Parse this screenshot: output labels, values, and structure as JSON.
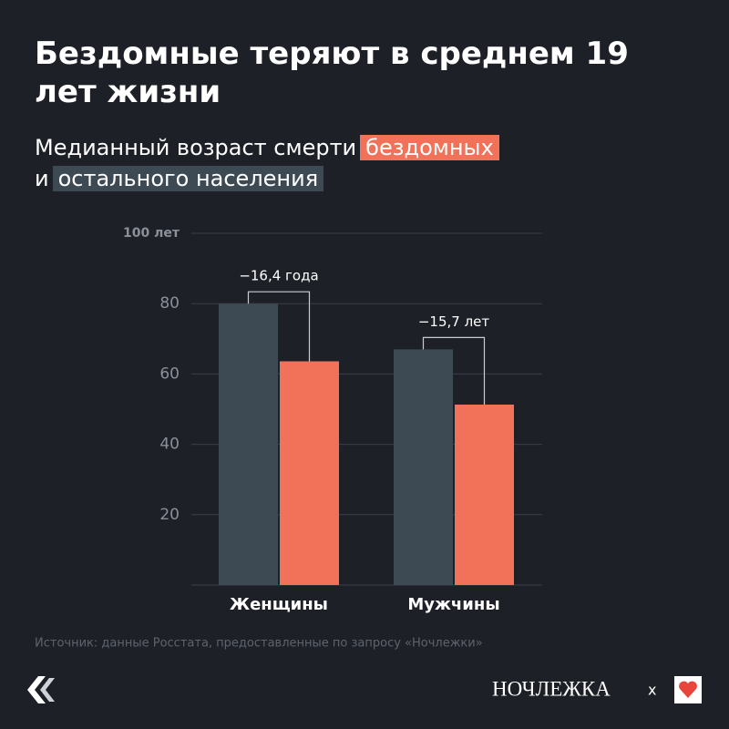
{
  "chart_data": {
    "type": "bar",
    "title": "Бездомные теряют в среднем 19 лет жизни",
    "subtitle_lead": "Медианный возраст смерти",
    "subtitle_joiner": "и",
    "categories": [
      "Женщины",
      "Мужчины"
    ],
    "series": [
      {
        "name": "остального населения",
        "color": "#3d4a54",
        "values": [
          80,
          67
        ]
      },
      {
        "name": "бездомных",
        "color": "#f27259",
        "values": [
          63.6,
          51.3
        ]
      }
    ],
    "annotations": [
      "−16,4 года",
      "−15,7 лет"
    ],
    "ylim": [
      0,
      100
    ],
    "yticks": [
      20,
      40,
      60,
      80,
      {
        "value": 100,
        "label": "100 лет"
      }
    ],
    "grid": true,
    "source": "Источник: данные Росстата, предоставленные по запросу «Ночлежки»",
    "brand": "НОЧЛЕЖКА",
    "brand_joiner": "x"
  }
}
